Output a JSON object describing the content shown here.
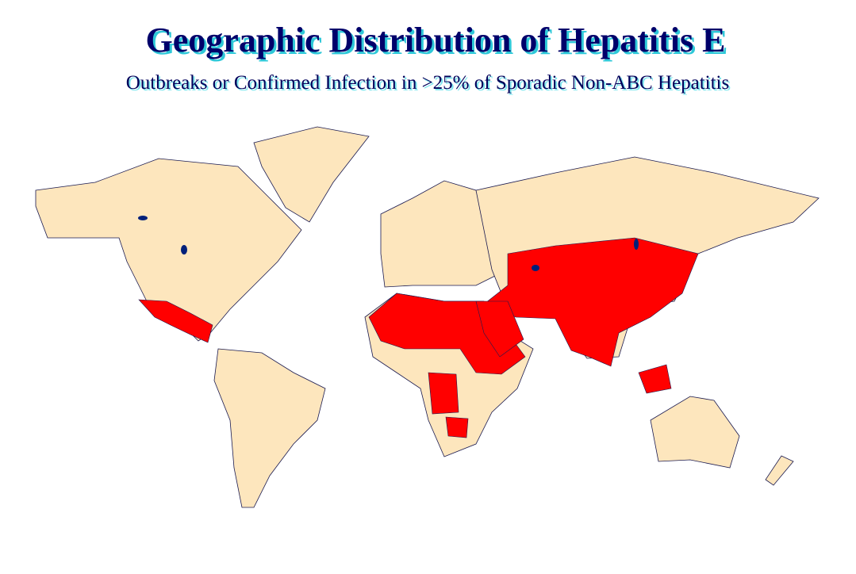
{
  "header": {
    "title": "Geographic Distribution of Hepatitis E",
    "subtitle": "Outbreaks or Confirmed Infection in >25% of Sporadic Non-ABC Hepatitis"
  }
}
